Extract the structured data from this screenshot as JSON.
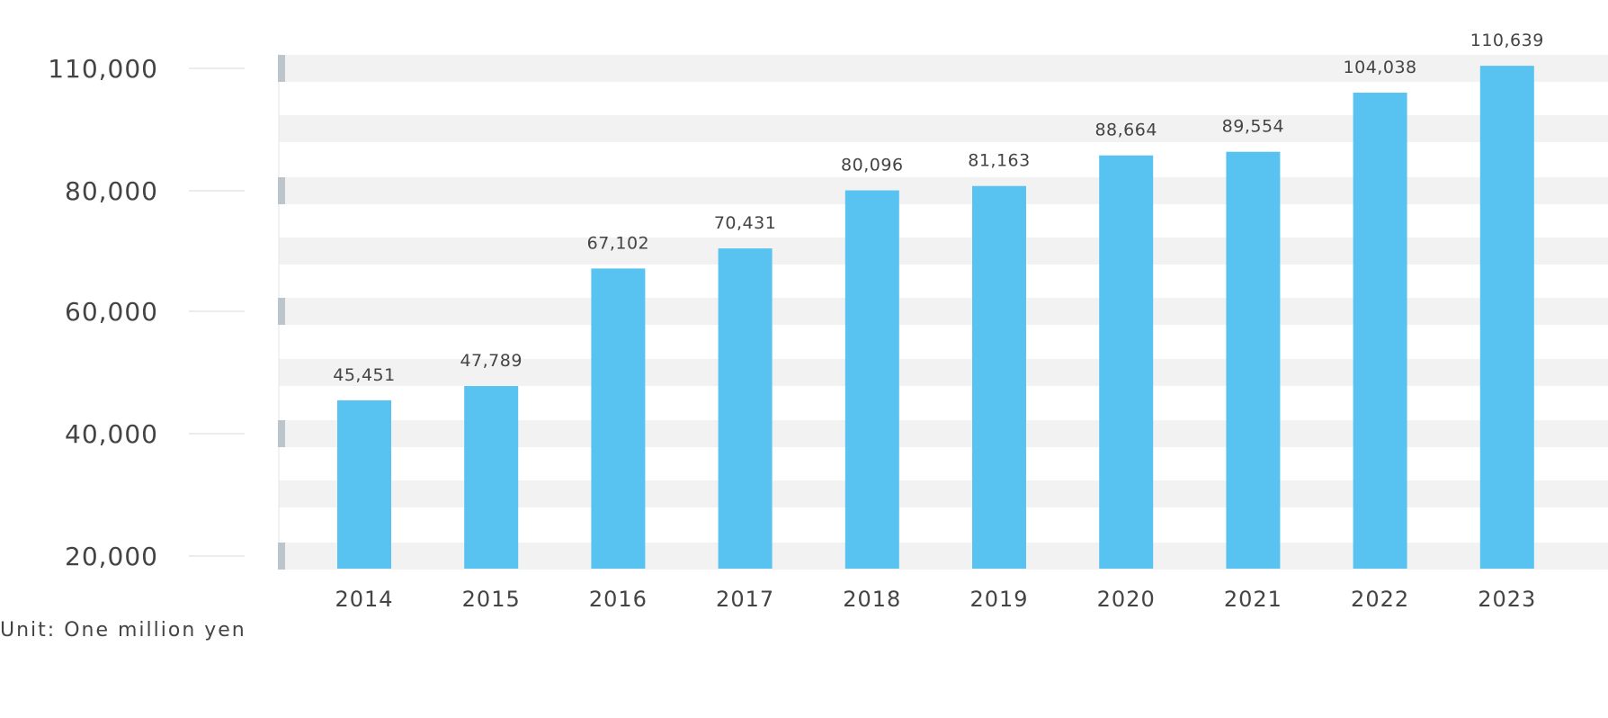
{
  "chart_data": {
    "type": "bar",
    "categories": [
      "2014",
      "2015",
      "2016",
      "2017",
      "2018",
      "2019",
      "2020",
      "2021",
      "2022",
      "2023"
    ],
    "values": [
      45451,
      47789,
      67102,
      70431,
      80096,
      81163,
      88664,
      89554,
      104038,
      110639
    ],
    "value_labels": [
      "45,451",
      "47,789",
      "67,102",
      "70,431",
      "80,096",
      "81,163",
      "88,664",
      "89,554",
      "104,038",
      "110,639"
    ],
    "y_ticks": [
      20000,
      40000,
      60000,
      80000,
      110000
    ],
    "y_tick_labels": [
      "20,000",
      "40,000",
      "60,000",
      "80,000",
      "110,000"
    ],
    "title": "",
    "xlabel": "",
    "ylabel": "",
    "unit_note": "Unit: One million yen",
    "grid": "alternating horizontal bands",
    "legend": "none",
    "colors": {
      "bar": "#58c3f0",
      "band": "#f2f2f2",
      "tick_mark": "#bcc5cc",
      "axis_line": "#e3e6e9",
      "text": "#444444"
    }
  }
}
